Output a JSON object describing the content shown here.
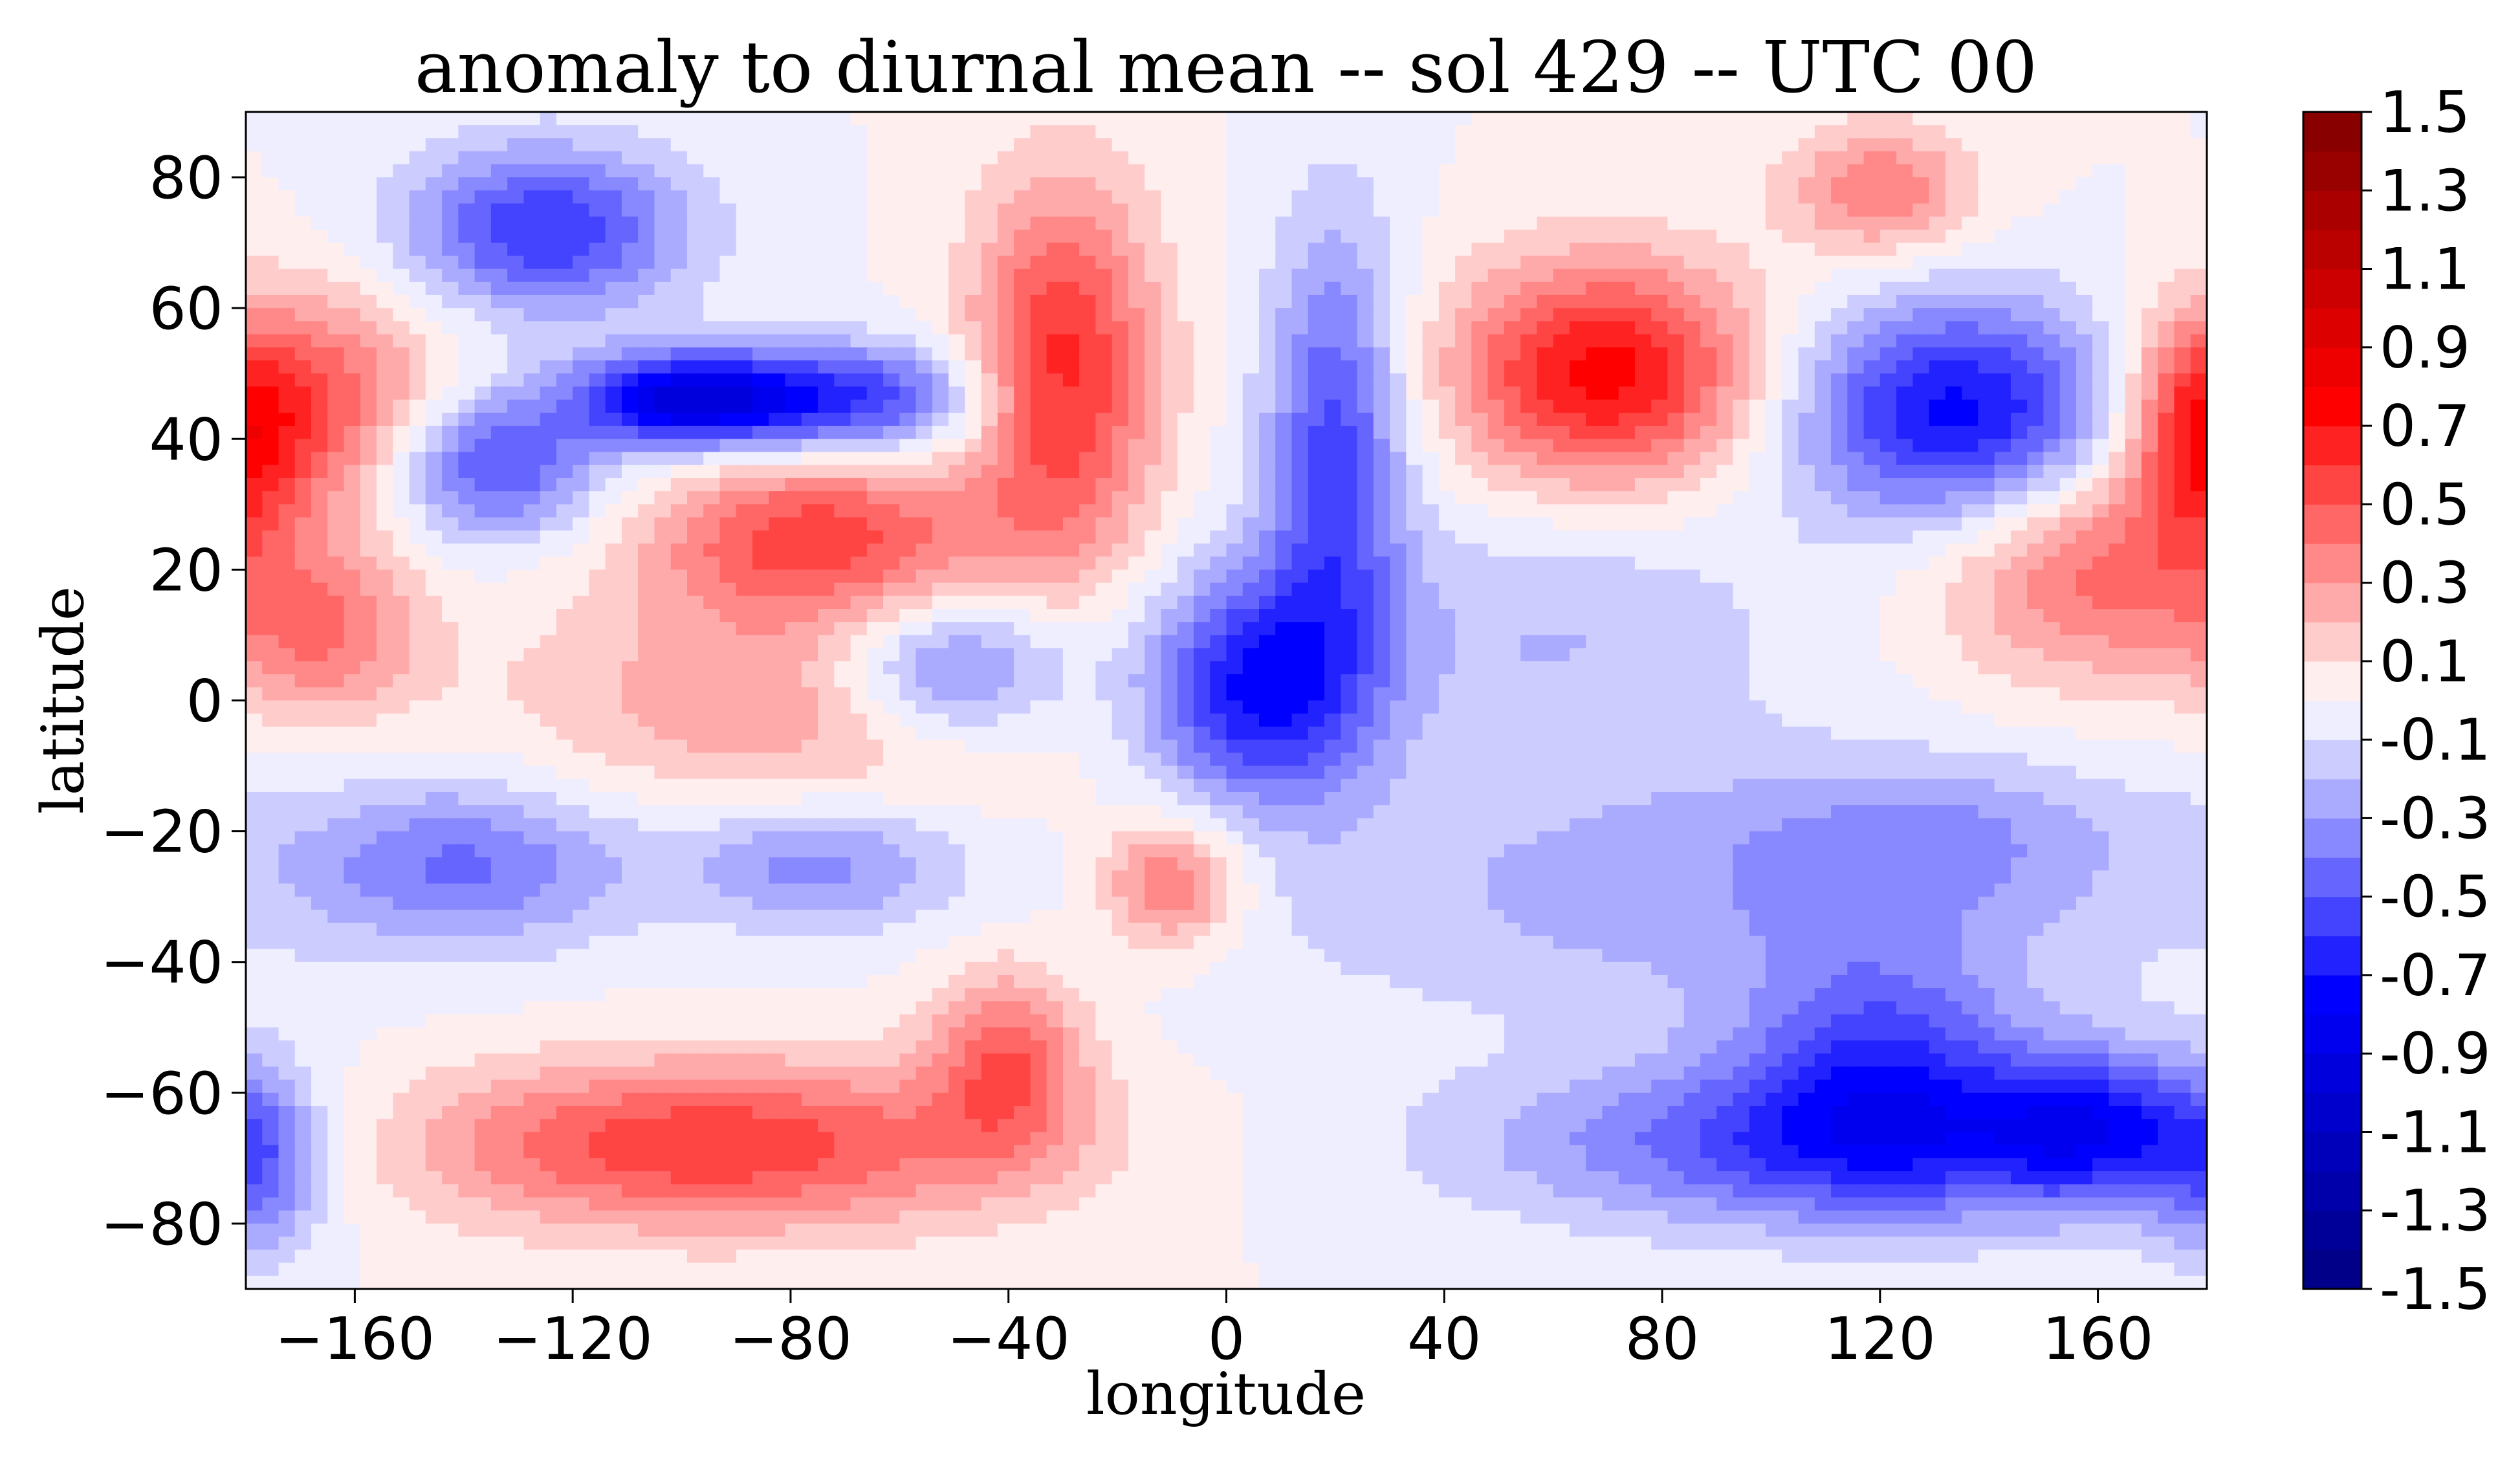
{
  "chart_data": {
    "type": "filled-contour",
    "title": "anomaly to diurnal mean -- sol 429 -- UTC 00",
    "xlabel": "longitude",
    "ylabel": "latitude",
    "xlim": [
      -180,
      180
    ],
    "ylim": [
      -90,
      90
    ],
    "xticks": [
      -160,
      -120,
      -80,
      -40,
      0,
      40,
      80,
      120,
      160
    ],
    "yticks": [
      -80,
      -60,
      -40,
      -20,
      0,
      20,
      40,
      60,
      80
    ],
    "xtick_labels": [
      "−160",
      "−120",
      "−80",
      "−40",
      "0",
      "40",
      "80",
      "120",
      "160"
    ],
    "ytick_labels": [
      "−80",
      "−60",
      "−40",
      "−20",
      "0",
      "20",
      "40",
      "60",
      "80"
    ],
    "colorbar": {
      "cmap": "seismic",
      "levels_min": -1.5,
      "levels_max": 1.5,
      "level_step": 0.1,
      "labels": [
        "1.5",
        "1.3",
        "1.1",
        "0.9",
        "0.7",
        "0.5",
        "0.3",
        "0.1",
        "-0.1",
        "-0.3",
        "-0.5",
        "-0.7",
        "-0.9",
        "-1.1",
        "-1.3",
        "-1.5"
      ]
    },
    "anomaly_centers": [
      {
        "lon": -170,
        "lat": 45,
        "value": 0.55,
        "sx": 18,
        "sy": 12
      },
      {
        "lon": -125,
        "lat": 72,
        "value": -0.6,
        "sx": 18,
        "sy": 9
      },
      {
        "lon": -100,
        "lat": 46,
        "value": -0.85,
        "sx": 14,
        "sy": 5
      },
      {
        "lon": -70,
        "lat": 46,
        "value": -0.6,
        "sx": 18,
        "sy": 6
      },
      {
        "lon": -135,
        "lat": 36,
        "value": -0.55,
        "sx": 14,
        "sy": 8
      },
      {
        "lon": -75,
        "lat": 25,
        "value": 0.55,
        "sx": 22,
        "sy": 9
      },
      {
        "lon": -30,
        "lat": 50,
        "value": 0.65,
        "sx": 12,
        "sy": 20
      },
      {
        "lon": 20,
        "lat": 38,
        "value": -0.55,
        "sx": 9,
        "sy": 24
      },
      {
        "lon": 5,
        "lat": 2,
        "value": -0.7,
        "sx": 14,
        "sy": 12
      },
      {
        "lon": -50,
        "lat": 5,
        "value": -0.5,
        "sx": 16,
        "sy": 8
      },
      {
        "lon": 70,
        "lat": 50,
        "value": 0.75,
        "sx": 20,
        "sy": 12
      },
      {
        "lon": 135,
        "lat": 44,
        "value": -0.75,
        "sx": 22,
        "sy": 12
      },
      {
        "lon": 120,
        "lat": 78,
        "value": 0.4,
        "sx": 12,
        "sy": 7
      },
      {
        "lon": 160,
        "lat": 20,
        "value": 0.45,
        "sx": 20,
        "sy": 12
      },
      {
        "lon": -165,
        "lat": 10,
        "value": 0.35,
        "sx": 12,
        "sy": 9
      },
      {
        "lon": -80,
        "lat": 0,
        "value": 0.3,
        "sx": 35,
        "sy": 12
      },
      {
        "lon": -140,
        "lat": -25,
        "value": -0.4,
        "sx": 22,
        "sy": 9
      },
      {
        "lon": -75,
        "lat": -25,
        "value": -0.35,
        "sx": 18,
        "sy": 7
      },
      {
        "lon": -10,
        "lat": -28,
        "value": 0.45,
        "sx": 9,
        "sy": 7
      },
      {
        "lon": -95,
        "lat": -68,
        "value": 0.6,
        "sx": 40,
        "sy": 9
      },
      {
        "lon": -40,
        "lat": -55,
        "value": 0.45,
        "sx": 10,
        "sy": 10
      },
      {
        "lon": 115,
        "lat": -68,
        "value": -0.55,
        "sx": 45,
        "sy": 9
      },
      {
        "lon": 120,
        "lat": -55,
        "value": -0.45,
        "sx": 18,
        "sy": 12
      },
      {
        "lon": 160,
        "lat": -65,
        "value": -0.5,
        "sx": 14,
        "sy": 8
      },
      {
        "lon": 90,
        "lat": -30,
        "value": -0.25,
        "sx": 60,
        "sy": 14
      },
      {
        "lon": -178,
        "lat": -72,
        "value": -0.35,
        "sx": 8,
        "sy": 10
      },
      {
        "lon": 178,
        "lat": 40,
        "value": 0.4,
        "sx": 8,
        "sy": 12
      },
      {
        "lon": 60,
        "lat": 10,
        "value": -0.2,
        "sx": 30,
        "sy": 15
      },
      {
        "lon": 130,
        "lat": -20,
        "value": -0.2,
        "sx": 25,
        "sy": 8
      }
    ]
  }
}
